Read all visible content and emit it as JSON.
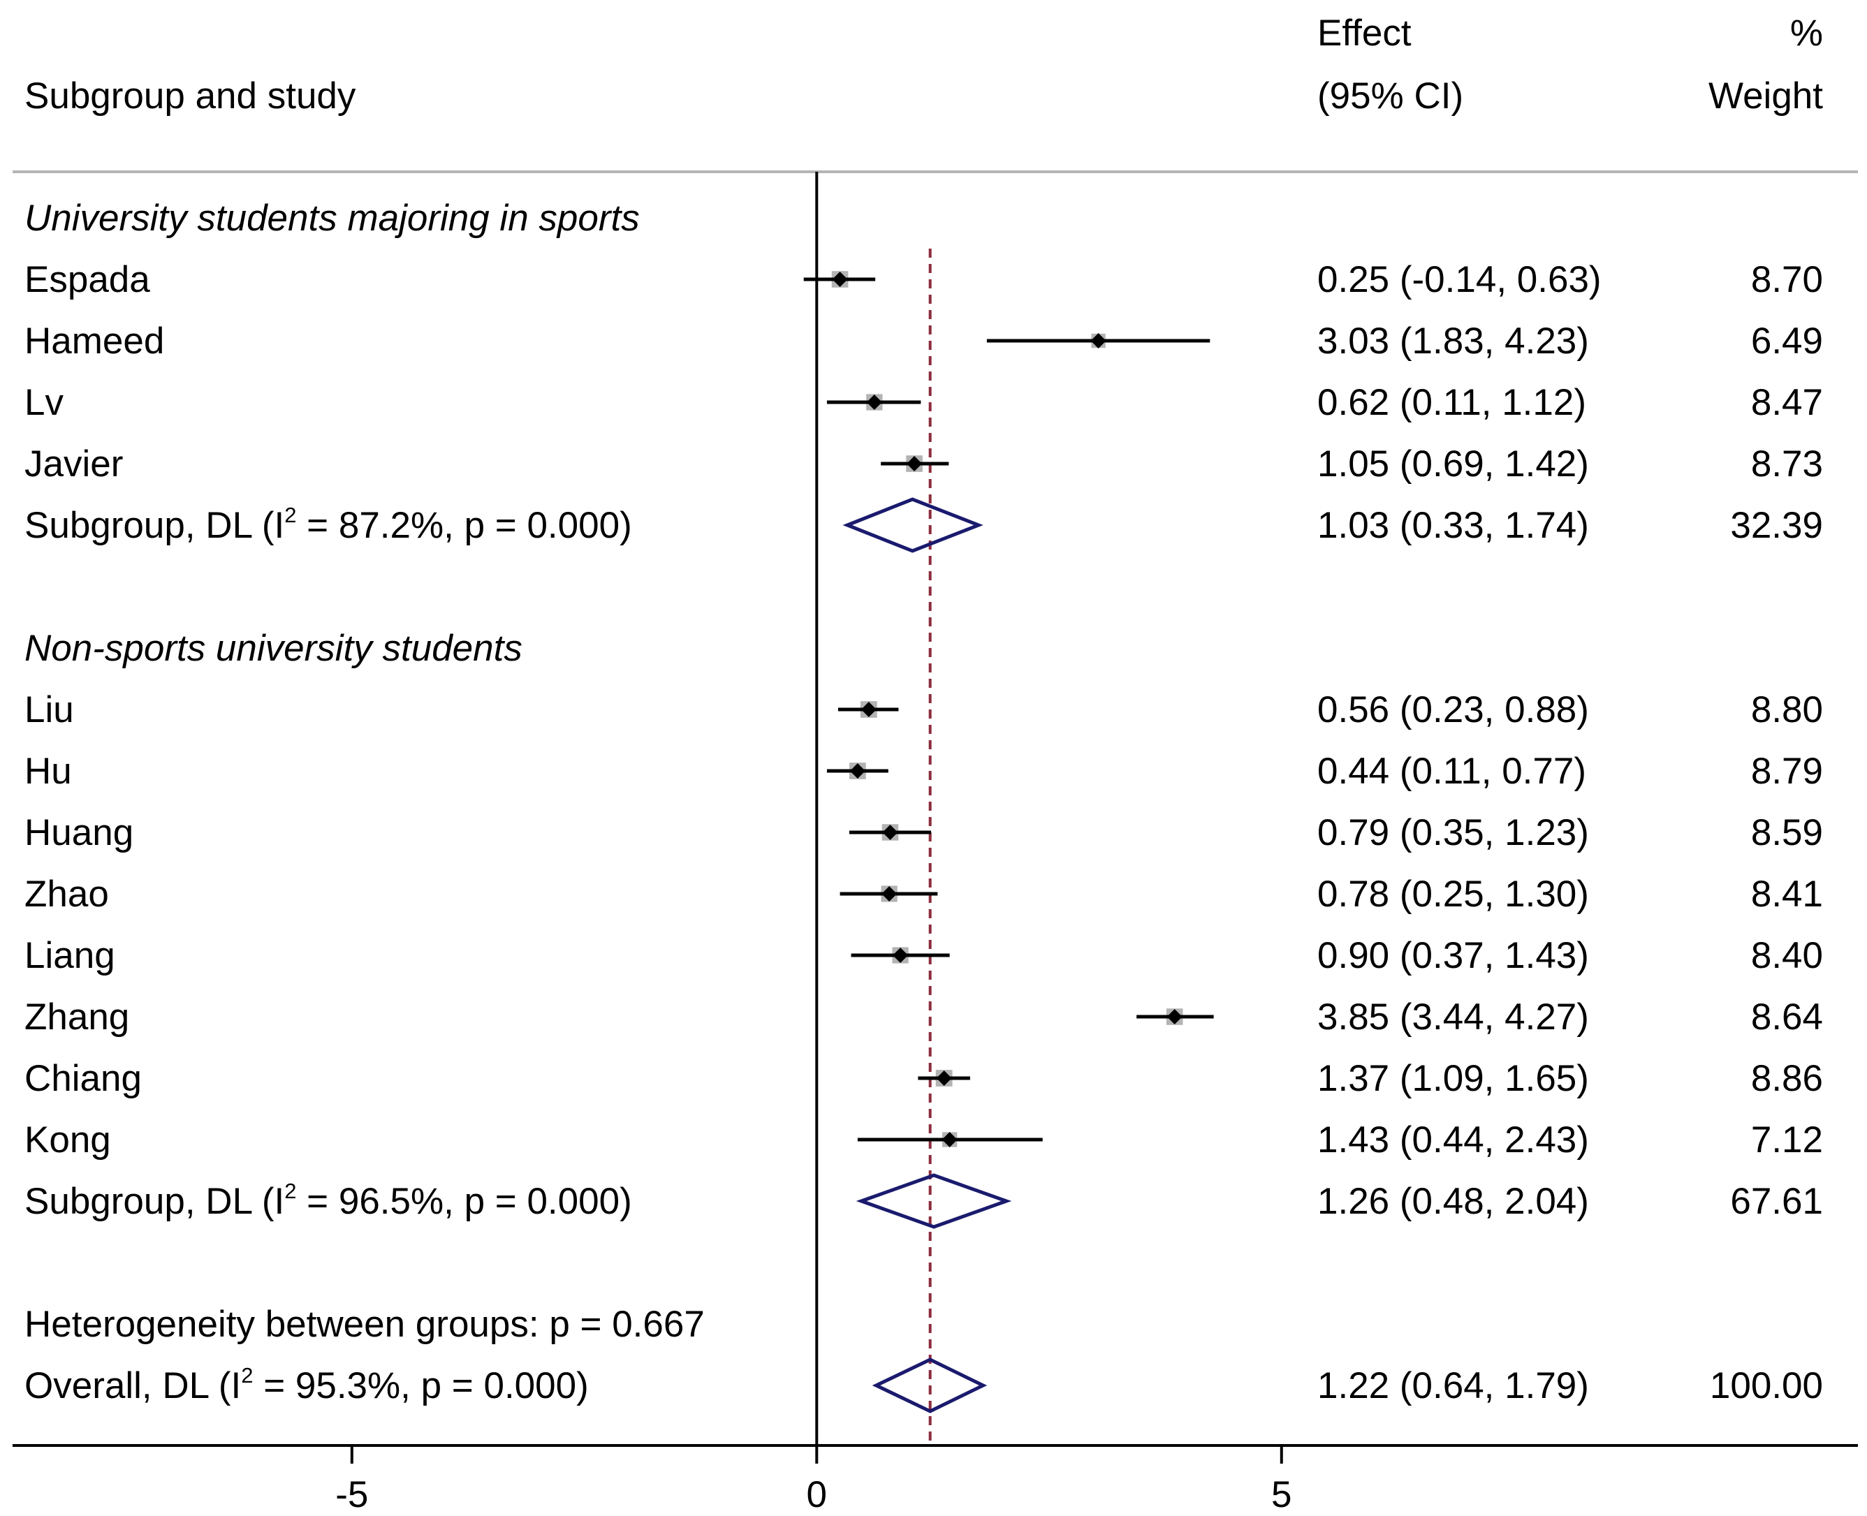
{
  "chart_data": {
    "type": "forest",
    "headers": {
      "study": "Subgroup and study",
      "effect_line1": "Effect",
      "effect_line2": "(95% CI)",
      "weight_line1": "%",
      "weight_line2": "Weight"
    },
    "x_axis": {
      "ticks": [
        -5,
        0,
        5
      ],
      "range": [
        -8.65,
        11.2
      ]
    },
    "reference_line": 0,
    "overall_reference": 1.22,
    "rows": [
      {
        "kind": "group",
        "label": "University students majoring in sports"
      },
      {
        "kind": "study",
        "label": "Espada",
        "est": 0.25,
        "lo": -0.14,
        "hi": 0.63,
        "effect_text": "0.25 (-0.14, 0.63)",
        "weight": 8.7,
        "weight_text": "8.70"
      },
      {
        "kind": "study",
        "label": "Hameed",
        "est": 3.03,
        "lo": 1.83,
        "hi": 4.23,
        "effect_text": "3.03 (1.83, 4.23)",
        "weight": 6.49,
        "weight_text": "6.49"
      },
      {
        "kind": "study",
        "label": "Lv",
        "est": 0.62,
        "lo": 0.11,
        "hi": 1.12,
        "effect_text": "0.62 (0.11, 1.12)",
        "weight": 8.47,
        "weight_text": "8.47"
      },
      {
        "kind": "study",
        "label": "Javier",
        "est": 1.05,
        "lo": 0.69,
        "hi": 1.42,
        "effect_text": "1.05 (0.69, 1.42)",
        "weight": 8.73,
        "weight_text": "8.73"
      },
      {
        "kind": "summary",
        "label_pre": "Subgroup, DL (I",
        "label_sup": "2",
        "label_post": " = 87.2%, p = 0.000)",
        "est": 1.03,
        "lo": 0.33,
        "hi": 1.74,
        "effect_text": "1.03 (0.33, 1.74)",
        "weight_text": "32.39"
      },
      {
        "kind": "blank"
      },
      {
        "kind": "group",
        "label": "Non-sports university students"
      },
      {
        "kind": "study",
        "label": "Liu",
        "est": 0.56,
        "lo": 0.23,
        "hi": 0.88,
        "effect_text": "0.56 (0.23, 0.88)",
        "weight": 8.8,
        "weight_text": "8.80"
      },
      {
        "kind": "study",
        "label": "Hu",
        "est": 0.44,
        "lo": 0.11,
        "hi": 0.77,
        "effect_text": "0.44 (0.11, 0.77)",
        "weight": 8.79,
        "weight_text": "8.79"
      },
      {
        "kind": "study",
        "label": "Huang",
        "est": 0.79,
        "lo": 0.35,
        "hi": 1.23,
        "effect_text": "0.79 (0.35, 1.23)",
        "weight": 8.59,
        "weight_text": "8.59"
      },
      {
        "kind": "study",
        "label": "Zhao",
        "est": 0.78,
        "lo": 0.25,
        "hi": 1.3,
        "effect_text": "0.78 (0.25, 1.30)",
        "weight": 8.41,
        "weight_text": "8.41"
      },
      {
        "kind": "study",
        "label": "Liang",
        "est": 0.9,
        "lo": 0.37,
        "hi": 1.43,
        "effect_text": "0.90 (0.37, 1.43)",
        "weight": 8.4,
        "weight_text": "8.40"
      },
      {
        "kind": "study",
        "label": "Zhang",
        "est": 3.85,
        "lo": 3.44,
        "hi": 4.27,
        "effect_text": "3.85 (3.44, 4.27)",
        "weight": 8.64,
        "weight_text": "8.64"
      },
      {
        "kind": "study",
        "label": "Chiang",
        "est": 1.37,
        "lo": 1.09,
        "hi": 1.65,
        "effect_text": "1.37 (1.09, 1.65)",
        "weight": 8.86,
        "weight_text": "8.86"
      },
      {
        "kind": "study",
        "label": "Kong",
        "est": 1.43,
        "lo": 0.44,
        "hi": 2.43,
        "effect_text": "1.43 (0.44, 2.43)",
        "weight": 7.12,
        "weight_text": "7.12"
      },
      {
        "kind": "summary",
        "label_pre": "Subgroup, DL (I",
        "label_sup": "2",
        "label_post": " = 96.5%, p = 0.000)",
        "est": 1.26,
        "lo": 0.48,
        "hi": 2.04,
        "effect_text": "1.26 (0.48, 2.04)",
        "weight_text": "67.61"
      },
      {
        "kind": "blank"
      },
      {
        "kind": "note",
        "label": "Heterogeneity between groups: p = 0.667"
      },
      {
        "kind": "summary",
        "label_pre": "Overall, DL (I",
        "label_sup": "2",
        "label_post": " = 95.3%, p = 0.000)",
        "est": 1.22,
        "lo": 0.64,
        "hi": 1.79,
        "effect_text": "1.22 (0.64, 1.79)",
        "weight_text": "100.00"
      }
    ],
    "colors": {
      "marker_box": "#b3b3b3",
      "point": "#000000",
      "ci_line": "#000000",
      "diamond": "#1a1a6e",
      "overall_line": "#8b2c3c",
      "axis": "#000000",
      "header_rule": "#b4b4b4"
    }
  }
}
